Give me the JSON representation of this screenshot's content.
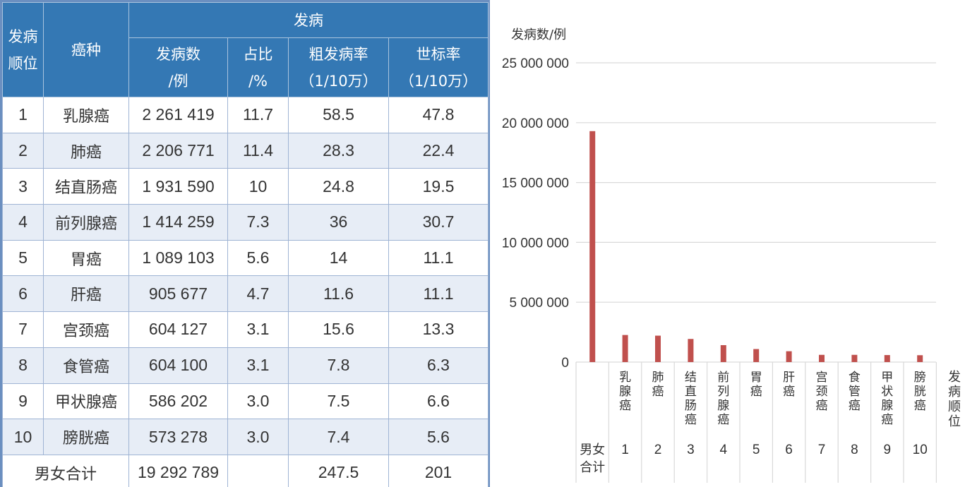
{
  "table": {
    "header": {
      "rank": [
        "发病",
        "顺位"
      ],
      "cancer": "癌种",
      "group": "发病",
      "cases": [
        "发病数",
        "/例"
      ],
      "share": [
        "占比",
        "/%"
      ],
      "crude": [
        "粗发病率",
        "（1/10万）"
      ],
      "asr": [
        "世标率",
        "（1/10万）"
      ]
    },
    "rows": [
      {
        "rank": "1",
        "cancer": "乳腺癌",
        "cases": "2 261 419",
        "share": "11.7",
        "crude": "58.5",
        "asr": "47.8"
      },
      {
        "rank": "2",
        "cancer": "肺癌",
        "cases": "2 206 771",
        "share": "11.4",
        "crude": "28.3",
        "asr": "22.4"
      },
      {
        "rank": "3",
        "cancer": "结直肠癌",
        "cases": "1 931 590",
        "share": "10",
        "crude": "24.8",
        "asr": "19.5"
      },
      {
        "rank": "4",
        "cancer": "前列腺癌",
        "cases": "1 414 259",
        "share": "7.3",
        "crude": "36",
        "asr": "30.7"
      },
      {
        "rank": "5",
        "cancer": "胃癌",
        "cases": "1 089 103",
        "share": "5.6",
        "crude": "14",
        "asr": "11.1"
      },
      {
        "rank": "6",
        "cancer": "肝癌",
        "cases": "905 677",
        "share": "4.7",
        "crude": "11.6",
        "asr": "11.1"
      },
      {
        "rank": "7",
        "cancer": "宫颈癌",
        "cases": "604 127",
        "share": "3.1",
        "crude": "15.6",
        "asr": "13.3"
      },
      {
        "rank": "8",
        "cancer": "食管癌",
        "cases": "604 100",
        "share": "3.1",
        "crude": "7.8",
        "asr": "6.3"
      },
      {
        "rank": "9",
        "cancer": "甲状腺癌",
        "cases": "586 202",
        "share": "3.0",
        "crude": "7.5",
        "asr": "6.6"
      },
      {
        "rank": "10",
        "cancer": "膀胱癌",
        "cases": "573 278",
        "share": "3.0",
        "crude": "7.4",
        "asr": "5.6"
      }
    ],
    "total": {
      "label": "男女合计",
      "cases": "19 292 789",
      "share": "",
      "crude": "247.5",
      "asr": "201"
    }
  },
  "chart_data": {
    "type": "bar",
    "ylabel": "发病数/例",
    "xlabel": "发病顺位",
    "ylim": [
      0,
      25000000
    ],
    "yticks": [
      0,
      5000000,
      10000000,
      15000000,
      20000000,
      25000000
    ],
    "ytick_labels": [
      "0",
      "5 000 000",
      "10 000 000",
      "15 000 000",
      "20 000 000",
      "25 000 000"
    ],
    "grid": true,
    "bar_color": "#c0504d",
    "categories": [
      "男女合计",
      "乳腺癌",
      "肺癌",
      "结直肠癌",
      "前列腺癌",
      "胃癌",
      "肝癌",
      "宫颈癌",
      "食管癌",
      "甲状腺癌",
      "膀胱癌"
    ],
    "ranks": [
      "",
      "1",
      "2",
      "3",
      "4",
      "5",
      "6",
      "7",
      "8",
      "9",
      "10"
    ],
    "values": [
      19292789,
      2261419,
      2206771,
      1931590,
      1414259,
      1089103,
      905677,
      604127,
      604100,
      586202,
      573278
    ]
  }
}
